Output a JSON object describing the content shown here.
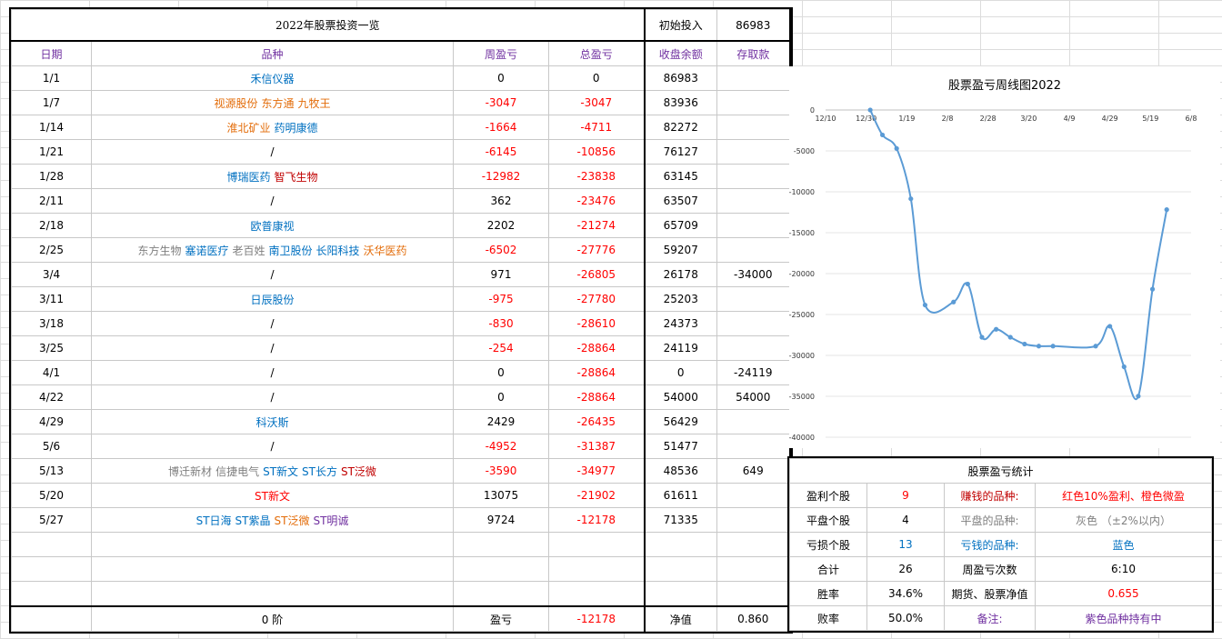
{
  "sheet": {
    "title": "2022年股票投资一览",
    "initial_label": "初始投入",
    "initial_value": "86983",
    "headers": [
      "日期",
      "品种",
      "周盈亏",
      "总盈亏",
      "收盘余额",
      "存取款"
    ],
    "rows": [
      {
        "date": "1/1",
        "stocks": [
          {
            "name": "禾信仪器",
            "color": "#0070c0"
          }
        ],
        "week": "0",
        "week_color": "#000000",
        "total": "0",
        "total_color": "#000000",
        "balance": "86983",
        "deposit": ""
      },
      {
        "date": "1/7",
        "stocks": [
          {
            "name": "视源股份",
            "color": "#e36c09"
          },
          {
            "name": "东方通",
            "color": "#e36c09"
          },
          {
            "name": "九牧王",
            "color": "#e36c09"
          }
        ],
        "week": "-3047",
        "week_color": "#ff0000",
        "total": "-3047",
        "total_color": "#ff0000",
        "balance": "83936",
        "deposit": ""
      },
      {
        "date": "1/14",
        "stocks": [
          {
            "name": "淮北矿业",
            "color": "#e36c09"
          },
          {
            "name": "药明康德",
            "color": "#0070c0"
          }
        ],
        "week": "-1664",
        "week_color": "#ff0000",
        "total": "-4711",
        "total_color": "#ff0000",
        "balance": "82272",
        "deposit": ""
      },
      {
        "date": "1/21",
        "stocks": [
          {
            "name": "/",
            "color": "#000000"
          }
        ],
        "week": "-6145",
        "week_color": "#ff0000",
        "total": "-10856",
        "total_color": "#ff0000",
        "balance": "76127",
        "deposit": ""
      },
      {
        "date": "1/28",
        "stocks": [
          {
            "name": "博瑞医药",
            "color": "#0070c0"
          },
          {
            "name": "智飞生物",
            "color": "#c00000"
          }
        ],
        "week": "-12982",
        "week_color": "#ff0000",
        "total": "-23838",
        "total_color": "#ff0000",
        "balance": "63145",
        "deposit": ""
      },
      {
        "date": "2/11",
        "stocks": [
          {
            "name": "/",
            "color": "#000000"
          }
        ],
        "week": "362",
        "week_color": "#000000",
        "total": "-23476",
        "total_color": "#ff0000",
        "balance": "63507",
        "deposit": ""
      },
      {
        "date": "2/18",
        "stocks": [
          {
            "name": "欧普康视",
            "color": "#0070c0"
          }
        ],
        "week": "2202",
        "week_color": "#000000",
        "total": "-21274",
        "total_color": "#ff0000",
        "balance": "65709",
        "deposit": ""
      },
      {
        "date": "2/25",
        "stocks": [
          {
            "name": "东方生物",
            "color": "#7f7f7f"
          },
          {
            "name": "塞诺医疗",
            "color": "#0070c0"
          },
          {
            "name": "老百姓",
            "color": "#7f7f7f"
          },
          {
            "name": "南卫股份",
            "color": "#0070c0"
          },
          {
            "name": "长阳科技",
            "color": "#0070c0"
          },
          {
            "name": "沃华医药",
            "color": "#e36c09"
          }
        ],
        "week": "-6502",
        "week_color": "#ff0000",
        "total": "-27776",
        "total_color": "#ff0000",
        "balance": "59207",
        "deposit": ""
      },
      {
        "date": "3/4",
        "stocks": [
          {
            "name": "/",
            "color": "#000000"
          }
        ],
        "week": "971",
        "week_color": "#000000",
        "total": "-26805",
        "total_color": "#ff0000",
        "balance": "26178",
        "deposit": "-34000"
      },
      {
        "date": "3/11",
        "stocks": [
          {
            "name": "日辰股份",
            "color": "#0070c0"
          }
        ],
        "week": "-975",
        "week_color": "#ff0000",
        "total": "-27780",
        "total_color": "#ff0000",
        "balance": "25203",
        "deposit": ""
      },
      {
        "date": "3/18",
        "stocks": [
          {
            "name": "/",
            "color": "#000000"
          }
        ],
        "week": "-830",
        "week_color": "#ff0000",
        "total": "-28610",
        "total_color": "#ff0000",
        "balance": "24373",
        "deposit": ""
      },
      {
        "date": "3/25",
        "stocks": [
          {
            "name": "/",
            "color": "#000000"
          }
        ],
        "week": "-254",
        "week_color": "#ff0000",
        "total": "-28864",
        "total_color": "#ff0000",
        "balance": "24119",
        "deposit": ""
      },
      {
        "date": "4/1",
        "stocks": [
          {
            "name": "/",
            "color": "#000000"
          }
        ],
        "week": "0",
        "week_color": "#000000",
        "total": "-28864",
        "total_color": "#ff0000",
        "balance": "0",
        "deposit": "-24119"
      },
      {
        "date": "4/22",
        "stocks": [
          {
            "name": "/",
            "color": "#000000"
          }
        ],
        "week": "0",
        "week_color": "#000000",
        "total": "-28864",
        "total_color": "#ff0000",
        "balance": "54000",
        "deposit": "54000"
      },
      {
        "date": "4/29",
        "stocks": [
          {
            "name": "科沃斯",
            "color": "#0070c0"
          }
        ],
        "week": "2429",
        "week_color": "#000000",
        "total": "-26435",
        "total_color": "#ff0000",
        "balance": "56429",
        "deposit": ""
      },
      {
        "date": "5/6",
        "stocks": [
          {
            "name": "/",
            "color": "#000000"
          }
        ],
        "week": "-4952",
        "week_color": "#ff0000",
        "total": "-31387",
        "total_color": "#ff0000",
        "balance": "51477",
        "deposit": ""
      },
      {
        "date": "5/13",
        "stocks": [
          {
            "name": "博迁新材",
            "color": "#7f7f7f"
          },
          {
            "name": "信捷电气",
            "color": "#7f7f7f"
          },
          {
            "name": "ST新文",
            "color": "#0070c0"
          },
          {
            "name": "ST长方",
            "color": "#0070c0"
          },
          {
            "name": "ST泛微",
            "color": "#c00000"
          }
        ],
        "week": "-3590",
        "week_color": "#ff0000",
        "total": "-34977",
        "total_color": "#ff0000",
        "balance": "48536",
        "deposit": "649"
      },
      {
        "date": "5/20",
        "stocks": [
          {
            "name": "ST新文",
            "color": "#ff0000"
          }
        ],
        "week": "13075",
        "week_color": "#000000",
        "total": "-21902",
        "total_color": "#ff0000",
        "balance": "61611",
        "deposit": ""
      },
      {
        "date": "5/27",
        "stocks": [
          {
            "name": "ST日海",
            "color": "#0070c0"
          },
          {
            "name": "ST紫晶",
            "color": "#0070c0"
          },
          {
            "name": "ST泛微",
            "color": "#e36c09"
          },
          {
            "name": "ST明诚",
            "color": "#7030a0"
          }
        ],
        "week": "9724",
        "week_color": "#000000",
        "total": "-12178",
        "total_color": "#ff0000",
        "balance": "71335",
        "deposit": ""
      }
    ],
    "footer": {
      "stage": "0 阶",
      "pl_label": "盈亏",
      "pl_value": "-12178",
      "nav_label": "净值",
      "nav_value": "0.860"
    }
  },
  "chart_data": {
    "type": "line",
    "title": "股票盈亏周线图2022",
    "x_ticks": [
      "12/10",
      "12/30",
      "1/19",
      "2/8",
      "2/28",
      "3/20",
      "4/9",
      "4/29",
      "5/19",
      "6/8"
    ],
    "y_ticks": [
      "0",
      "-5000",
      "-10000",
      "-15000",
      "-20000",
      "-25000",
      "-30000",
      "-35000",
      "-40000"
    ],
    "ylim": [
      -40000,
      0
    ],
    "series": [
      {
        "color": "#5b9bd5",
        "x": [
          "2022-01-01",
          "2022-01-07",
          "2022-01-14",
          "2022-01-21",
          "2022-01-28",
          "2022-02-11",
          "2022-02-18",
          "2022-02-25",
          "2022-03-04",
          "2022-03-11",
          "2022-03-18",
          "2022-03-25",
          "2022-04-01",
          "2022-04-22",
          "2022-04-29",
          "2022-05-06",
          "2022-05-13",
          "2022-05-20",
          "2022-05-27"
        ],
        "y": [
          0,
          -3047,
          -4711,
          -10856,
          -23838,
          -23476,
          -21274,
          -27776,
          -26805,
          -27780,
          -28610,
          -28864,
          -28864,
          -28864,
          -26435,
          -31387,
          -34977,
          -21902,
          -12178
        ]
      }
    ]
  },
  "stats": {
    "title": "股票盈亏统计",
    "rows": [
      {
        "a": "盈利个股",
        "b": "9",
        "b_color": "#ff0000",
        "c": "赚钱的品种:",
        "c_color": "#c00000",
        "d": "红色10%盈利、橙色微盈",
        "d_color": "#ff0000"
      },
      {
        "a": "平盘个股",
        "b": "4",
        "b_color": "#000000",
        "c": "平盘的品种:",
        "c_color": "#7f7f7f",
        "d": "灰色 （±2%以内）",
        "d_color": "#7f7f7f"
      },
      {
        "a": "亏损个股",
        "b": "13",
        "b_color": "#0070c0",
        "c": "亏钱的品种:",
        "c_color": "#0070c0",
        "d": "蓝色",
        "d_color": "#0070c0"
      },
      {
        "a": "合计",
        "b": "26",
        "b_color": "#000000",
        "c": "周盈亏次数",
        "c_color": "#000000",
        "d": "6:10",
        "d_color": "#000000"
      },
      {
        "a": "胜率",
        "b": "34.6%",
        "b_color": "#000000",
        "c": "期货、股票净值",
        "c_color": "#000000",
        "d": "0.655",
        "d_color": "#ff0000"
      },
      {
        "a": "败率",
        "b": "50.0%",
        "b_color": "#000000",
        "c": "备注:",
        "c_color": "#7030a0",
        "d": "紫色品种持有中",
        "d_color": "#7030a0"
      }
    ]
  }
}
